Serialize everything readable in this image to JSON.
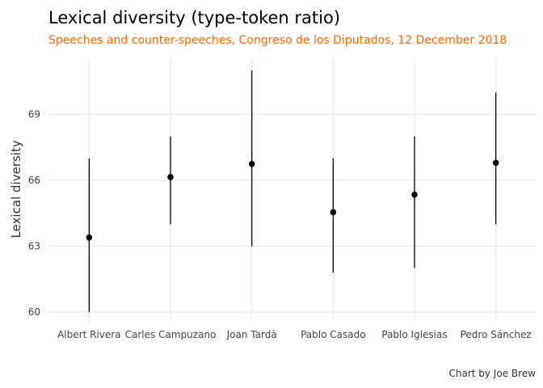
{
  "chart_data": {
    "type": "scatter",
    "title": "Lexical diversity (type-token ratio)",
    "subtitle": "Speeches and counter-speeches, Congreso de los Diputados, 12 December 2018",
    "caption": "Chart by Joe Brew",
    "xlabel": "",
    "ylabel": "Lexical diversity",
    "ylim": [
      59.6,
      71.6
    ],
    "yticks": [
      60,
      63,
      66,
      69
    ],
    "ytick_labels": [
      "60",
      "63",
      "66",
      "69"
    ],
    "grid": true,
    "legend": "none",
    "categories": [
      "Albert Rivera",
      "Carles Campuzano",
      "Joan Tardà",
      "Pablo Casado",
      "Pablo Iglesias",
      "Pedro Sánchez"
    ],
    "values": [
      63.4,
      66.15,
      66.75,
      64.55,
      65.35,
      66.8
    ],
    "lower": [
      60.0,
      64.0,
      63.0,
      61.8,
      62.0,
      64.0
    ],
    "upper": [
      67.0,
      68.0,
      71.0,
      67.0,
      68.0,
      70.0
    ]
  },
  "colors": {
    "subtitle": "#ff6600",
    "points": "#000000",
    "grid": "#e6e6e6"
  }
}
